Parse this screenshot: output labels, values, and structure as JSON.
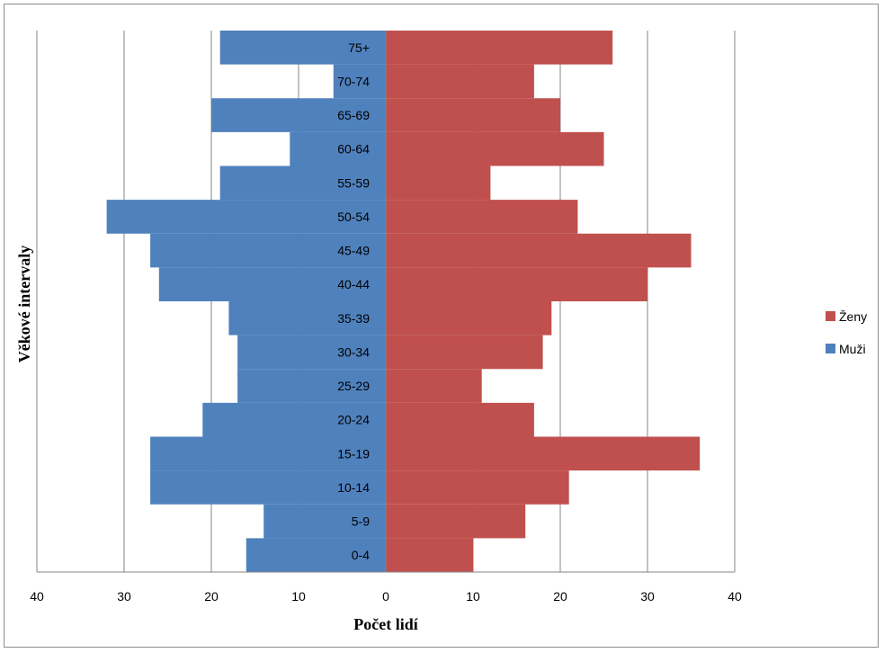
{
  "chart_data": {
    "type": "bar",
    "orientation": "horizontal",
    "title": "",
    "xlabel": "Počet lidí",
    "ylabel": "Věkové intervaly",
    "xlim": [
      -40,
      40
    ],
    "x_ticks": [
      "40",
      "30",
      "20",
      "10",
      "0",
      "10",
      "20",
      "30",
      "40"
    ],
    "categories": [
      "0-4",
      "5-9",
      "10-14",
      "15-19",
      "20-24",
      "25-29",
      "30-34",
      "35-39",
      "40-44",
      "45-49",
      "50-54",
      "55-59",
      "60-64",
      "65-69",
      "70-74",
      "75+"
    ],
    "series": [
      {
        "name": "Ženy",
        "color": "#c0504d",
        "values": [
          10,
          16,
          21,
          36,
          17,
          11,
          18,
          19,
          30,
          35,
          22,
          12,
          25,
          20,
          17,
          26
        ]
      },
      {
        "name": "Muži",
        "color": "#4f81bd",
        "values": [
          16,
          14,
          27,
          27,
          21,
          17,
          17,
          18,
          26,
          27,
          32,
          19,
          11,
          20,
          6,
          19
        ]
      }
    ],
    "grid": true,
    "legend_position": "right"
  }
}
